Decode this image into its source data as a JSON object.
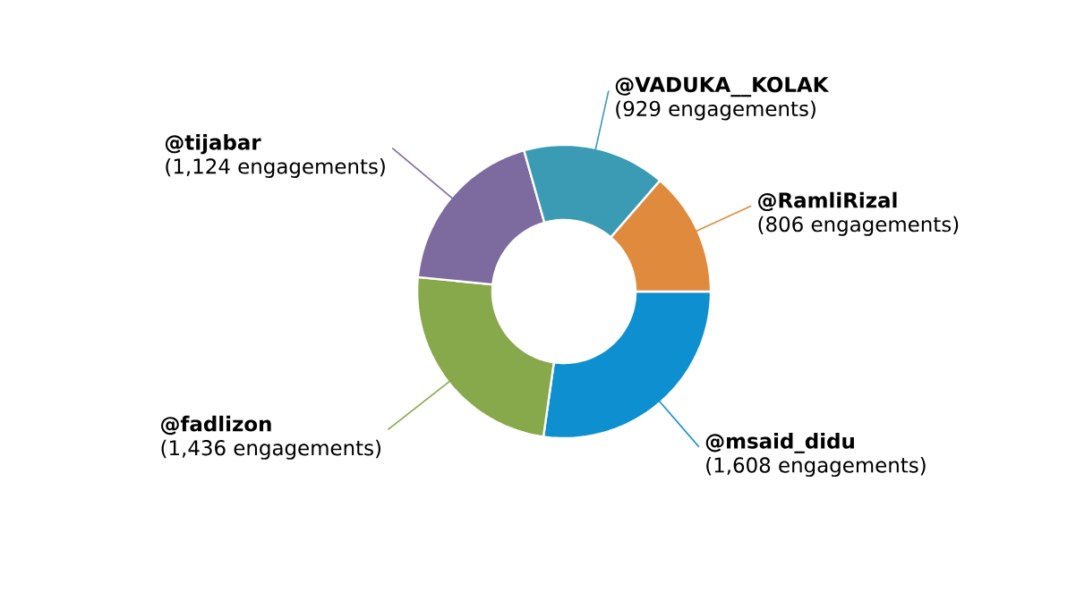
{
  "chart_data": {
    "type": "donut",
    "categories": [
      "@msaid_didu",
      "@fadlizon",
      "@tijabar",
      "@VADUKA__KOLAK",
      "@RamliRizal"
    ],
    "values": [
      1608,
      1436,
      1124,
      929,
      806
    ],
    "value_labels": [
      "(1,608 engagements)",
      "(1,436 engagements)",
      "(1,124 engagements)",
      "(929 engagements)",
      "(806 engagements)"
    ],
    "colors": [
      "#0e8fcf",
      "#88a84c",
      "#7d6a9e",
      "#3b9bb5",
      "#e08a3e"
    ]
  }
}
